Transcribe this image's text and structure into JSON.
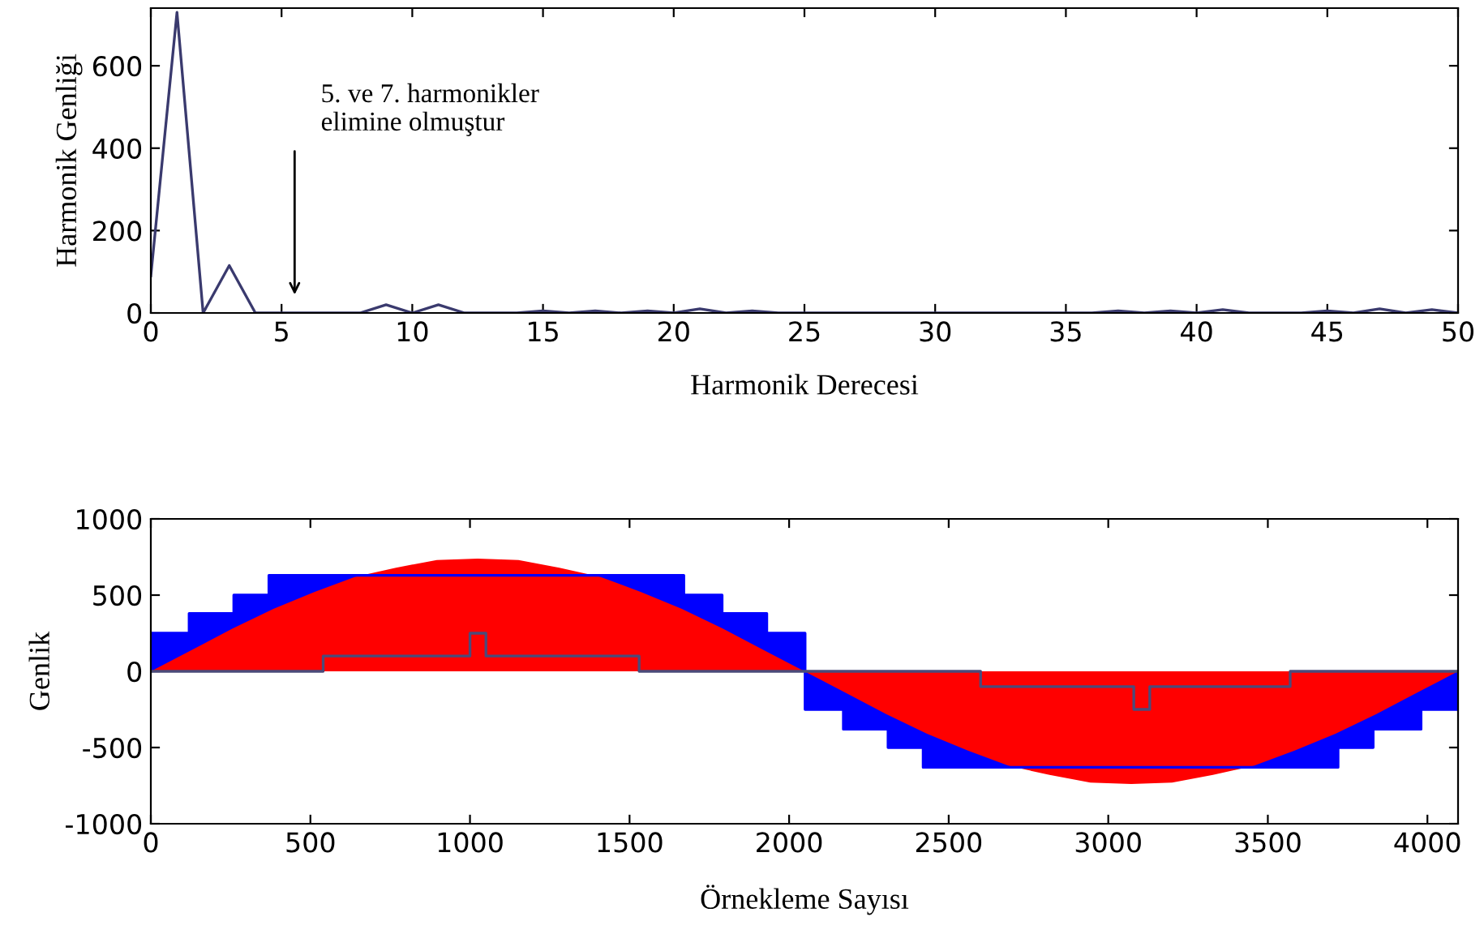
{
  "chart_data": [
    {
      "type": "line",
      "xlabel": "Harmonik Derecesi",
      "ylabel": "Harmonik Genliği",
      "xlim": [
        0,
        50
      ],
      "ylim": [
        0,
        740
      ],
      "xticks": [
        0,
        5,
        10,
        15,
        20,
        25,
        30,
        35,
        40,
        45,
        50
      ],
      "yticks": [
        0,
        200,
        400,
        600
      ],
      "grid": false,
      "legend": false,
      "x": [
        0,
        1,
        2,
        3,
        4,
        5,
        6,
        7,
        8,
        9,
        10,
        11,
        12,
        13,
        14,
        15,
        16,
        17,
        18,
        19,
        20,
        21,
        22,
        23,
        24,
        25,
        26,
        27,
        28,
        29,
        30,
        31,
        32,
        33,
        34,
        35,
        36,
        37,
        38,
        39,
        40,
        41,
        42,
        43,
        44,
        45,
        46,
        47,
        48,
        49,
        50
      ],
      "series": [
        {
          "color": "#3a3a6e",
          "values": [
            90,
            730,
            0,
            115,
            0,
            0,
            0,
            0,
            0,
            20,
            0,
            20,
            0,
            0,
            0,
            5,
            0,
            5,
            0,
            5,
            0,
            10,
            0,
            5,
            0,
            0,
            0,
            0,
            0,
            0,
            0,
            0,
            0,
            0,
            0,
            0,
            0,
            5,
            0,
            5,
            0,
            8,
            0,
            0,
            0,
            5,
            0,
            10,
            0,
            8,
            0
          ]
        }
      ],
      "annotations": [
        "5. ve 7. harmonikler\nelimine olmuştur"
      ]
    },
    {
      "type": "area",
      "xlabel": "Örnekleme Sayısı",
      "ylabel": "Genlik",
      "xlim": [
        0,
        4096
      ],
      "ylim": [
        -1000,
        1000
      ],
      "xticks": [
        0,
        500,
        1000,
        1500,
        2000,
        2500,
        3000,
        3500,
        4000
      ],
      "yticks": [
        -1000,
        -500,
        0,
        500,
        1000
      ],
      "grid": false,
      "legend": false,
      "series": [
        {
          "type": "step",
          "color": "#0000ff",
          "x": [
            0,
            120,
            260,
            370,
            1670,
            1790,
            1930,
            2050,
            2170,
            2310,
            2420,
            3720,
            3830,
            3980,
            4096
          ],
          "values": [
            250,
            380,
            500,
            630,
            500,
            380,
            250,
            -250,
            -380,
            -500,
            -630,
            -500,
            -380,
            -250,
            -250
          ]
        },
        {
          "type": "area",
          "color": "#ff0000",
          "x": [
            0,
            128,
            256,
            384,
            512,
            640,
            768,
            896,
            1024,
            1152,
            1280,
            1408,
            1536,
            1664,
            1792,
            1920,
            2048
          ],
          "values": [
            0,
            140,
            280,
            410,
            520,
            620,
            680,
            730,
            740,
            730,
            680,
            620,
            520,
            410,
            280,
            140,
            0
          ]
        },
        {
          "type": "area",
          "color": "#ff0000",
          "x": [
            2048,
            2176,
            2304,
            2432,
            2560,
            2688,
            2816,
            2944,
            3072,
            3200,
            3328,
            3456,
            3584,
            3712,
            3840,
            3968,
            4096
          ],
          "values": [
            0,
            -140,
            -280,
            -410,
            -520,
            -620,
            -680,
            -730,
            -740,
            -730,
            -680,
            -620,
            -520,
            -410,
            -280,
            -140,
            0
          ]
        },
        {
          "type": "step",
          "color": "#4b4b7a",
          "x": [
            0,
            540,
            1000,
            1050,
            1530,
            2048,
            2600,
            3080,
            3130,
            3570,
            4096
          ],
          "values": [
            0,
            100,
            250,
            100,
            0,
            0,
            -100,
            -250,
            -100,
            0,
            0
          ]
        }
      ]
    }
  ]
}
